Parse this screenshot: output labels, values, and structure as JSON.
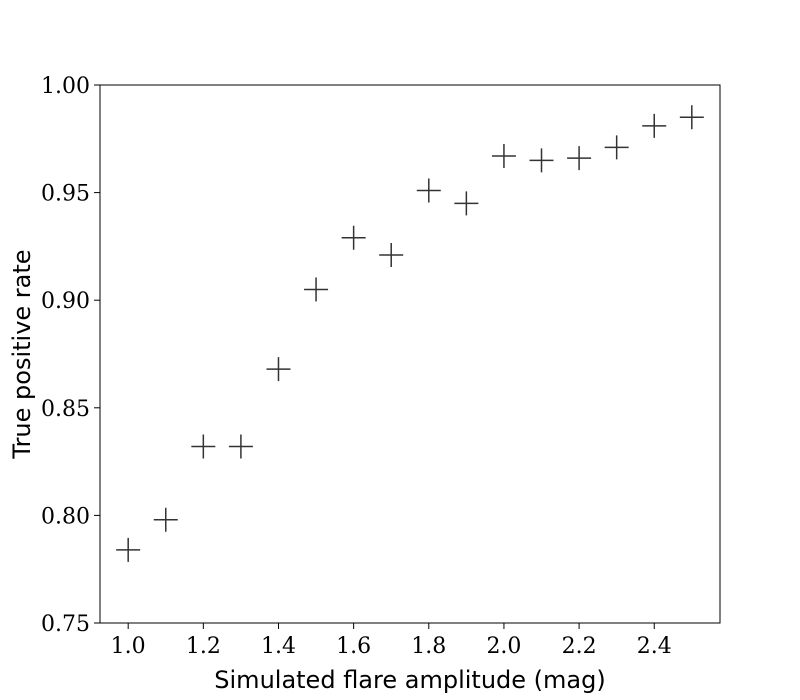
{
  "chart_data": {
    "type": "scatter",
    "marker": "plus",
    "color": "#333333",
    "x_label": "Simulated flare amplitude (mag)",
    "y_label": "True positive rate",
    "x": [
      1.0,
      1.1,
      1.2,
      1.3,
      1.4,
      1.5,
      1.6,
      1.7,
      1.8,
      1.9,
      2.0,
      2.1,
      2.2,
      2.3,
      2.4,
      2.5
    ],
    "values": [
      0.784,
      0.798,
      0.832,
      0.832,
      0.868,
      0.905,
      0.929,
      0.921,
      0.951,
      0.945,
      0.967,
      0.965,
      0.966,
      0.971,
      0.981,
      0.985
    ],
    "xlim": [
      0.925,
      2.575
    ],
    "ylim": [
      0.75,
      1.0
    ],
    "xticks": [
      {
        "value": 1.0,
        "label": "1.0"
      },
      {
        "value": 1.2,
        "label": "1.2"
      },
      {
        "value": 1.4,
        "label": "1.4"
      },
      {
        "value": 1.6,
        "label": "1.6"
      },
      {
        "value": 1.8,
        "label": "1.8"
      },
      {
        "value": 2.0,
        "label": "2.0"
      },
      {
        "value": 2.2,
        "label": "2.2"
      },
      {
        "value": 2.4,
        "label": "2.4"
      }
    ],
    "yticks": [
      {
        "value": 0.75,
        "label": "0.75"
      },
      {
        "value": 0.8,
        "label": "0.80"
      },
      {
        "value": 0.85,
        "label": "0.85"
      },
      {
        "value": 0.9,
        "label": "0.90"
      },
      {
        "value": 0.95,
        "label": "0.95"
      },
      {
        "value": 1.0,
        "label": "1.00"
      }
    ]
  }
}
